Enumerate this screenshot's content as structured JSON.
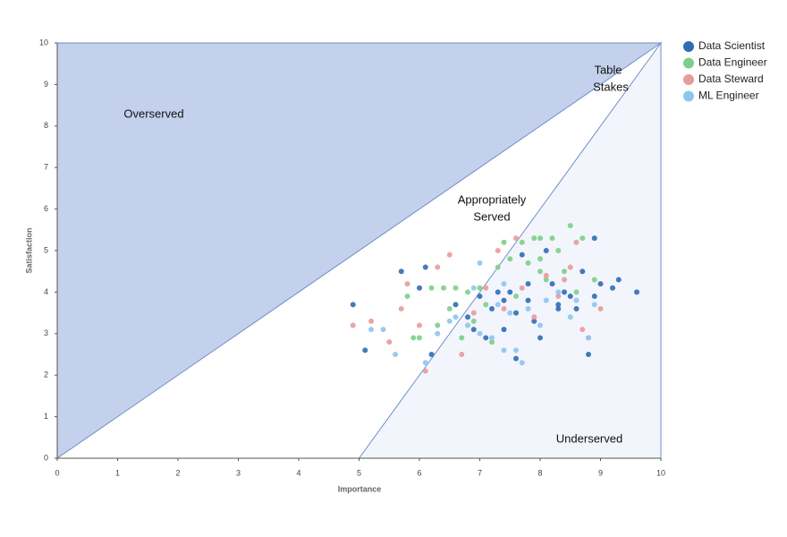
{
  "chart_data": {
    "type": "scatter",
    "xlabel": "Importance",
    "ylabel": "Satisfaction",
    "xlim": [
      0,
      10
    ],
    "ylim": [
      0,
      10
    ],
    "xticks": [
      0,
      1,
      2,
      3,
      4,
      5,
      6,
      7,
      8,
      9,
      10
    ],
    "yticks": [
      0,
      1,
      2,
      3,
      4,
      5,
      6,
      7,
      8,
      9,
      10
    ],
    "annotations": [
      [
        "Overserved"
      ],
      [
        "Table",
        "Stakes"
      ],
      [
        "Appropriately",
        "Served"
      ],
      [
        "Underserved"
      ]
    ],
    "series": [
      {
        "name": "Data Scientist",
        "color": "#2f6db5",
        "x": [
          4.9,
          5.1,
          5.7,
          6.1,
          6.2,
          6.6,
          6.8,
          7.0,
          7.2,
          7.3,
          7.4,
          7.5,
          7.6,
          7.6,
          7.7,
          7.8,
          7.9,
          8.0,
          8.1,
          8.2,
          8.3,
          8.4,
          8.5,
          8.6,
          8.7,
          8.8,
          8.9,
          8.9,
          9.0,
          9.2,
          9.3,
          9.6,
          7.1,
          7.4,
          6.9,
          7.8,
          8.3,
          6.0
        ],
        "y": [
          3.7,
          2.6,
          4.5,
          4.6,
          2.5,
          3.7,
          3.4,
          3.9,
          3.6,
          4.0,
          3.8,
          4.0,
          2.4,
          3.5,
          4.9,
          4.2,
          3.3,
          2.9,
          5.0,
          4.2,
          3.7,
          4.0,
          3.9,
          3.6,
          4.5,
          2.5,
          5.3,
          3.9,
          4.2,
          4.1,
          4.3,
          4.0,
          2.9,
          3.1,
          3.1,
          3.8,
          3.6,
          4.1
        ]
      },
      {
        "name": "Data Engineer",
        "color": "#7ccf8a",
        "x": [
          5.8,
          5.9,
          6.0,
          6.2,
          6.4,
          6.5,
          6.6,
          6.8,
          6.9,
          7.0,
          7.1,
          7.3,
          7.4,
          7.5,
          7.7,
          7.8,
          7.9,
          8.0,
          8.0,
          8.1,
          8.2,
          8.3,
          8.4,
          8.5,
          8.6,
          8.7,
          8.9,
          8.0,
          7.6,
          7.2,
          6.7,
          6.3
        ],
        "y": [
          3.9,
          2.9,
          2.9,
          4.1,
          4.1,
          3.6,
          4.1,
          4.0,
          3.3,
          4.1,
          3.7,
          4.6,
          5.2,
          4.8,
          5.2,
          4.7,
          5.3,
          5.3,
          4.8,
          4.3,
          5.3,
          5.0,
          4.5,
          5.6,
          4.0,
          5.3,
          4.3,
          4.5,
          3.9,
          2.8,
          2.9,
          3.2
        ]
      },
      {
        "name": "Data Steward",
        "color": "#e99a9a",
        "x": [
          4.9,
          5.2,
          5.5,
          5.7,
          5.8,
          6.1,
          6.3,
          6.5,
          6.7,
          6.9,
          7.1,
          7.3,
          7.6,
          7.7,
          7.9,
          8.1,
          8.3,
          8.5,
          8.6,
          8.7,
          8.8,
          9.0,
          6.0,
          7.4,
          8.4
        ],
        "y": [
          3.2,
          3.3,
          2.8,
          3.6,
          4.2,
          2.1,
          4.6,
          4.9,
          2.5,
          3.5,
          4.1,
          5.0,
          5.3,
          4.1,
          3.4,
          4.4,
          3.9,
          4.6,
          5.2,
          3.1,
          2.9,
          3.6,
          3.2,
          3.6,
          4.3
        ]
      },
      {
        "name": "ML Engineer",
        "color": "#8ec5ef",
        "x": [
          5.2,
          5.4,
          5.6,
          6.1,
          6.3,
          6.5,
          6.6,
          6.8,
          7.0,
          7.0,
          7.2,
          7.3,
          7.4,
          7.5,
          7.6,
          7.7,
          7.8,
          8.0,
          8.1,
          8.3,
          8.5,
          8.8,
          8.9,
          7.4,
          6.9,
          8.6
        ],
        "y": [
          3.1,
          3.1,
          2.5,
          2.3,
          3.0,
          3.3,
          3.4,
          3.2,
          4.7,
          3.0,
          2.9,
          3.7,
          2.6,
          3.5,
          2.6,
          2.3,
          3.6,
          3.2,
          3.8,
          4.0,
          3.4,
          2.9,
          3.7,
          4.2,
          4.1,
          3.8
        ]
      }
    ]
  }
}
